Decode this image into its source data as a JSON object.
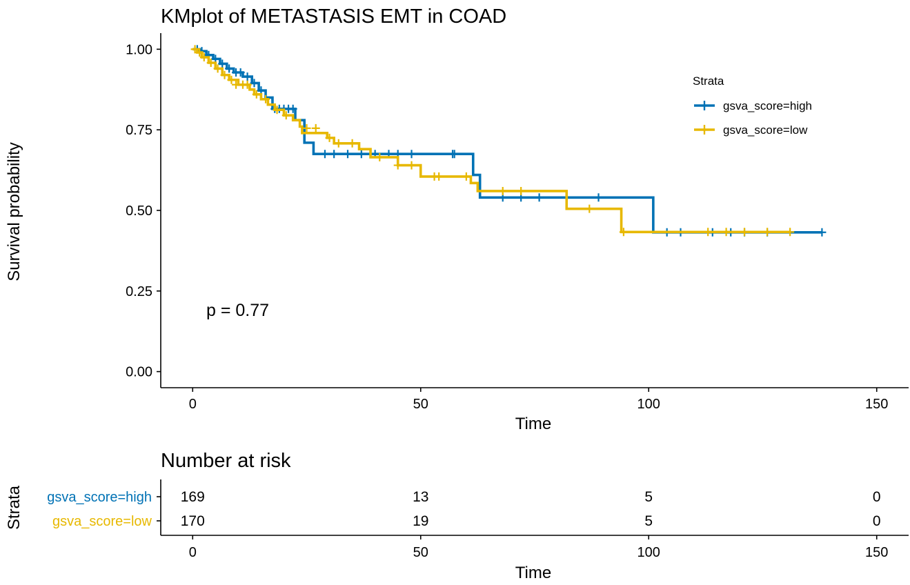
{
  "chart_data": {
    "type": "line",
    "title": "KMplot of METASTASIS EMT in COAD",
    "xlabel": "Time",
    "ylabel": "Survival probability",
    "xlim": [
      -7,
      157
    ],
    "ylim": [
      -0.05,
      1.05
    ],
    "x_ticks": [
      0,
      50,
      100,
      150
    ],
    "y_ticks": [
      0.0,
      0.25,
      0.5,
      0.75,
      1.0
    ],
    "y_tick_labels": [
      "0.00",
      "0.25",
      "0.50",
      "0.75",
      "1.00"
    ],
    "grid": false,
    "annotation": "p = 0.77",
    "legend": {
      "title": "Strata",
      "position": "top-right",
      "entries": [
        "gsva_score=high",
        "gsva_score=low"
      ]
    },
    "series": [
      {
        "name": "gsva_score=high",
        "color": "#0072B5",
        "steps": [
          [
            0,
            1.0
          ],
          [
            1.5,
            0.994
          ],
          [
            3,
            0.982
          ],
          [
            4.5,
            0.97
          ],
          [
            6,
            0.955
          ],
          [
            7.5,
            0.94
          ],
          [
            9,
            0.928
          ],
          [
            11,
            0.915
          ],
          [
            13,
            0.895
          ],
          [
            14.5,
            0.872
          ],
          [
            16,
            0.85
          ],
          [
            17.5,
            0.815
          ],
          [
            22.5,
            0.78
          ],
          [
            24.5,
            0.71
          ],
          [
            26.5,
            0.675
          ],
          [
            61.5,
            0.61
          ],
          [
            63,
            0.54
          ],
          [
            101,
            0.432
          ],
          [
            138,
            0.432
          ]
        ],
        "censor": [
          [
            1,
            1.0
          ],
          [
            2,
            0.994
          ],
          [
            3.5,
            0.982
          ],
          [
            5,
            0.97
          ],
          [
            6.5,
            0.955
          ],
          [
            8,
            0.94
          ],
          [
            9.5,
            0.928
          ],
          [
            10.5,
            0.928
          ],
          [
            12,
            0.915
          ],
          [
            13.5,
            0.895
          ],
          [
            15,
            0.872
          ],
          [
            18,
            0.815
          ],
          [
            19,
            0.815
          ],
          [
            20,
            0.815
          ],
          [
            21,
            0.815
          ],
          [
            22,
            0.815
          ],
          [
            29,
            0.675
          ],
          [
            31,
            0.675
          ],
          [
            34,
            0.675
          ],
          [
            37,
            0.675
          ],
          [
            40,
            0.675
          ],
          [
            43,
            0.675
          ],
          [
            45,
            0.675
          ],
          [
            48,
            0.675
          ],
          [
            57,
            0.675
          ],
          [
            57.4,
            0.675
          ],
          [
            68,
            0.54
          ],
          [
            72,
            0.54
          ],
          [
            76,
            0.54
          ],
          [
            89,
            0.54
          ],
          [
            104,
            0.432
          ],
          [
            107,
            0.432
          ],
          [
            114,
            0.432
          ],
          [
            118,
            0.432
          ],
          [
            121,
            0.432
          ],
          [
            126,
            0.432
          ],
          [
            138,
            0.432
          ]
        ]
      },
      {
        "name": "gsva_score=low",
        "color": "#E7B800",
        "steps": [
          [
            0,
            1.0
          ],
          [
            1,
            0.99
          ],
          [
            2,
            0.975
          ],
          [
            3.5,
            0.958
          ],
          [
            5,
            0.94
          ],
          [
            6.5,
            0.92
          ],
          [
            8,
            0.905
          ],
          [
            10,
            0.89
          ],
          [
            12.5,
            0.875
          ],
          [
            13.5,
            0.86
          ],
          [
            15,
            0.845
          ],
          [
            16.5,
            0.828
          ],
          [
            18,
            0.812
          ],
          [
            20,
            0.795
          ],
          [
            22,
            0.78
          ],
          [
            23.5,
            0.76
          ],
          [
            24,
            0.74
          ],
          [
            29.5,
            0.725
          ],
          [
            31,
            0.708
          ],
          [
            36.5,
            0.69
          ],
          [
            39,
            0.665
          ],
          [
            45,
            0.64
          ],
          [
            50,
            0.605
          ],
          [
            61,
            0.585
          ],
          [
            62.5,
            0.56
          ],
          [
            82,
            0.505
          ],
          [
            94,
            0.433
          ],
          [
            131,
            0.433
          ]
        ],
        "censor": [
          [
            0.5,
            1.0
          ],
          [
            1.5,
            0.99
          ],
          [
            2.5,
            0.975
          ],
          [
            4,
            0.958
          ],
          [
            5.5,
            0.94
          ],
          [
            7,
            0.92
          ],
          [
            8.5,
            0.905
          ],
          [
            9.5,
            0.89
          ],
          [
            11,
            0.89
          ],
          [
            12,
            0.89
          ],
          [
            14,
            0.86
          ],
          [
            16,
            0.845
          ],
          [
            18.5,
            0.812
          ],
          [
            20.5,
            0.795
          ],
          [
            25,
            0.755
          ],
          [
            27,
            0.755
          ],
          [
            30,
            0.725
          ],
          [
            32,
            0.708
          ],
          [
            35,
            0.708
          ],
          [
            41,
            0.665
          ],
          [
            45,
            0.64
          ],
          [
            48,
            0.64
          ],
          [
            53,
            0.605
          ],
          [
            54,
            0.605
          ],
          [
            60,
            0.605
          ],
          [
            68,
            0.56
          ],
          [
            72,
            0.56
          ],
          [
            87,
            0.505
          ],
          [
            94.5,
            0.433
          ],
          [
            113,
            0.433
          ],
          [
            117,
            0.433
          ],
          [
            121,
            0.433
          ],
          [
            126,
            0.433
          ],
          [
            131,
            0.433
          ]
        ]
      }
    ],
    "risk_table": {
      "title": "Number at risk",
      "ylabel": "Strata",
      "xlabel": "Time",
      "times": [
        0,
        50,
        100,
        150
      ],
      "rows": [
        {
          "name": "gsva_score=high",
          "color": "#0072B5",
          "counts": [
            169,
            13,
            5,
            0
          ]
        },
        {
          "name": "gsva_score=low",
          "color": "#E7B800",
          "counts": [
            170,
            19,
            5,
            0
          ]
        }
      ]
    }
  }
}
